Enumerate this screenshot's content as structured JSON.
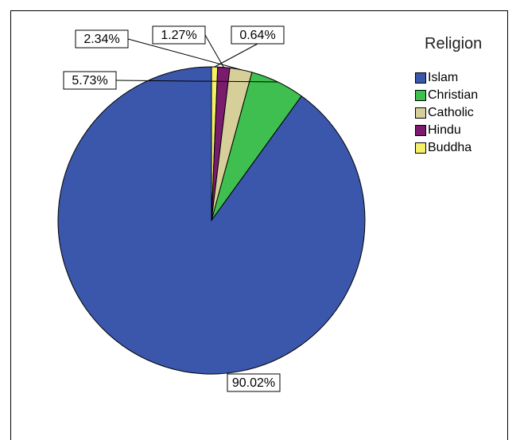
{
  "chart_data": {
    "type": "pie",
    "legend_title": "Religion",
    "legend_position": "right",
    "start_angle": "12 o'clock",
    "direction": "clockwise",
    "slices": [
      {
        "label": "Buddha",
        "value": 0.64,
        "value_label": "0.64%",
        "color": "#f5f06a"
      },
      {
        "label": "Hindu",
        "value": 1.27,
        "value_label": "1.27%",
        "color": "#7a1b6e"
      },
      {
        "label": "Catholic",
        "value": 2.34,
        "value_label": "2.34%",
        "color": "#d6cf9a"
      },
      {
        "label": "Christian",
        "value": 5.73,
        "value_label": "5.73%",
        "color": "#3fbf4f"
      },
      {
        "label": "Islam",
        "value": 90.02,
        "value_label": "90.02%",
        "color": "#3b57ab"
      }
    ],
    "legend_order": [
      "Islam",
      "Christian",
      "Catholic",
      "Hindu",
      "Buddha"
    ]
  }
}
